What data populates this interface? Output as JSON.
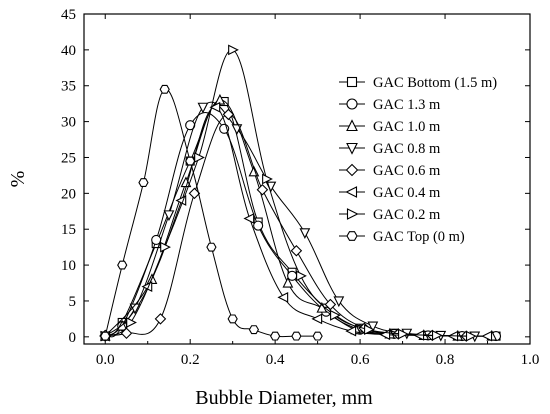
{
  "chart_data": {
    "type": "line",
    "title": "",
    "xlabel": "Bubble Diameter, mm",
    "ylabel": "%",
    "xlim": [
      -0.05,
      1.0
    ],
    "ylim": [
      -1,
      45
    ],
    "xticks": [
      "0.0",
      "0.2",
      "0.4",
      "0.6",
      "0.8",
      "1.0"
    ],
    "yticks": [
      "0",
      "5",
      "10",
      "15",
      "20",
      "25",
      "30",
      "35",
      "40",
      "45"
    ],
    "legend_position": "right",
    "series": [
      {
        "name": "GAC Bottom (1.5 m)",
        "marker": "square",
        "points": [
          [
            0.0,
            0.1
          ],
          [
            0.04,
            2.0
          ],
          [
            0.12,
            13.0
          ],
          [
            0.2,
            24.5
          ],
          [
            0.28,
            32.8
          ],
          [
            0.36,
            16.0
          ],
          [
            0.44,
            9.0
          ],
          [
            0.52,
            4.0
          ],
          [
            0.6,
            1.2
          ],
          [
            0.68,
            0.5
          ],
          [
            0.76,
            0.2
          ],
          [
            0.84,
            0.1
          ],
          [
            0.92,
            0.1
          ]
        ]
      },
      {
        "name": "GAC 1.3 m",
        "marker": "circle",
        "points": [
          [
            0.0,
            0.1
          ],
          [
            0.04,
            1.5
          ],
          [
            0.12,
            13.5
          ],
          [
            0.2,
            29.5
          ],
          [
            0.28,
            29.0
          ],
          [
            0.36,
            15.5
          ],
          [
            0.44,
            8.5
          ],
          [
            0.52,
            3.5
          ],
          [
            0.6,
            1.0
          ],
          [
            0.68,
            0.4
          ],
          [
            0.76,
            0.2
          ],
          [
            0.84,
            0.1
          ],
          [
            0.92,
            0.1
          ]
        ]
      },
      {
        "name": "GAC 1.0 m",
        "marker": "triangle-up",
        "points": [
          [
            0.0,
            0.1
          ],
          [
            0.04,
            1.5
          ],
          [
            0.11,
            8.0
          ],
          [
            0.19,
            21.5
          ],
          [
            0.27,
            33.0
          ],
          [
            0.35,
            23.0
          ],
          [
            0.43,
            7.5
          ],
          [
            0.51,
            4.0
          ],
          [
            0.59,
            1.0
          ],
          [
            0.67,
            0.4
          ],
          [
            0.75,
            0.2
          ],
          [
            0.83,
            0.1
          ],
          [
            0.91,
            0.1
          ]
        ]
      },
      {
        "name": "GAC 0.8 m",
        "marker": "triangle-down",
        "points": [
          [
            0.0,
            0.1
          ],
          [
            0.07,
            4.0
          ],
          [
            0.15,
            17.0
          ],
          [
            0.23,
            32.0
          ],
          [
            0.31,
            29.0
          ],
          [
            0.39,
            21.0
          ],
          [
            0.47,
            14.5
          ],
          [
            0.55,
            5.0
          ],
          [
            0.63,
            1.5
          ],
          [
            0.71,
            0.5
          ],
          [
            0.79,
            0.2
          ],
          [
            0.87,
            0.1
          ]
        ]
      },
      {
        "name": "GAC 0.6 m",
        "marker": "diamond",
        "points": [
          [
            0.0,
            0.2
          ],
          [
            0.05,
            0.5
          ],
          [
            0.13,
            2.5
          ],
          [
            0.21,
            20.0
          ],
          [
            0.29,
            31.0
          ],
          [
            0.37,
            20.5
          ],
          [
            0.45,
            12.0
          ],
          [
            0.53,
            4.5
          ],
          [
            0.61,
            1.2
          ],
          [
            0.69,
            0.4
          ],
          [
            0.77,
            0.2
          ],
          [
            0.85,
            0.1
          ]
        ]
      },
      {
        "name": "GAC 0.4 m",
        "marker": "triangle-left",
        "points": [
          [
            0.0,
            0.1
          ],
          [
            0.1,
            7.0
          ],
          [
            0.18,
            19.0
          ],
          [
            0.26,
            32.0
          ],
          [
            0.34,
            16.5
          ],
          [
            0.42,
            5.5
          ],
          [
            0.5,
            2.5
          ],
          [
            0.58,
            0.8
          ],
          [
            0.66,
            0.3
          ],
          [
            0.74,
            0.2
          ],
          [
            0.82,
            0.1
          ],
          [
            0.9,
            0.1
          ]
        ]
      },
      {
        "name": "GAC 0.2 m",
        "marker": "triangle-right",
        "points": [
          [
            0.0,
            0.1
          ],
          [
            0.06,
            2.0
          ],
          [
            0.14,
            12.5
          ],
          [
            0.22,
            25.0
          ],
          [
            0.3,
            40.0
          ],
          [
            0.38,
            22.0
          ],
          [
            0.46,
            8.5
          ],
          [
            0.54,
            3.0
          ],
          [
            0.62,
            1.0
          ],
          [
            0.7,
            0.4
          ],
          [
            0.78,
            0.2
          ],
          [
            0.86,
            0.1
          ]
        ]
      },
      {
        "name": "GAC Top (0 m)",
        "marker": "hexagon",
        "points": [
          [
            0.0,
            0.1
          ],
          [
            0.04,
            10.0
          ],
          [
            0.09,
            21.5
          ],
          [
            0.14,
            34.5
          ],
          [
            0.2,
            24.5
          ],
          [
            0.25,
            12.5
          ],
          [
            0.3,
            2.5
          ],
          [
            0.35,
            1.0
          ],
          [
            0.4,
            0.1
          ],
          [
            0.45,
            0.1
          ],
          [
            0.5,
            0.1
          ]
        ]
      }
    ]
  }
}
